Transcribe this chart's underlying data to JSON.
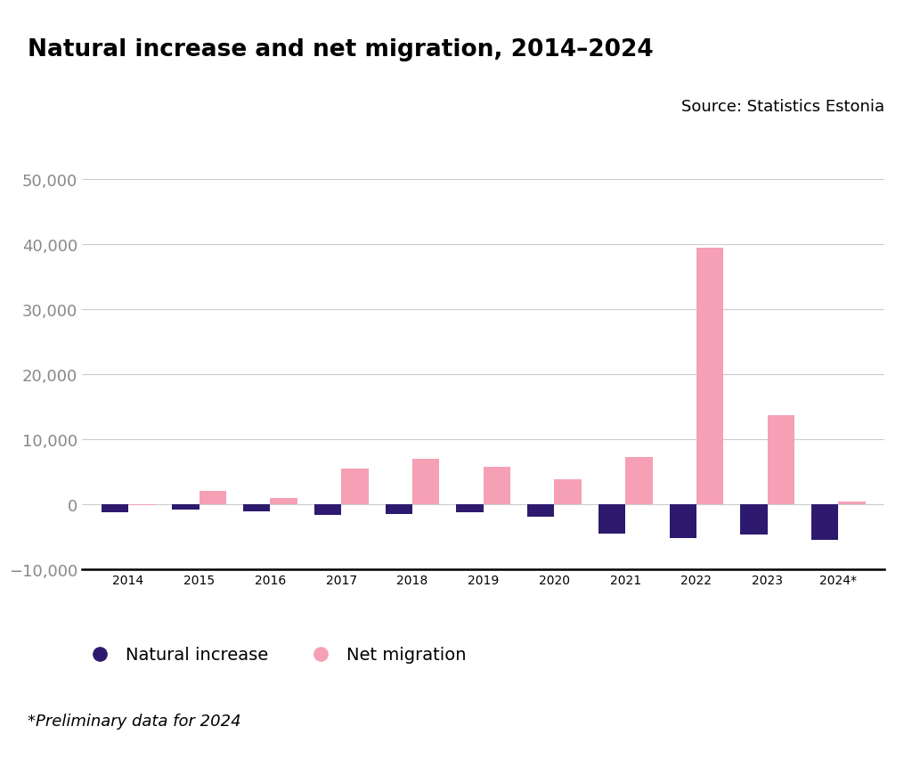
{
  "title": "Natural increase and net migration, 2014–2024",
  "source": "Source: Statistics Estonia",
  "footnote": "*Preliminary data for 2024",
  "years": [
    "2014",
    "2015",
    "2016",
    "2017",
    "2018",
    "2019",
    "2020",
    "2021",
    "2022",
    "2023",
    "2024*"
  ],
  "natural_increase": [
    -1200,
    -900,
    -1100,
    -1700,
    -1500,
    -1300,
    -2000,
    -4500,
    -5200,
    -4700,
    -5500
  ],
  "net_migration": [
    -200,
    2000,
    900,
    5500,
    7000,
    5700,
    3800,
    7200,
    39500,
    13700,
    400
  ],
  "color_natural": "#2d1a6e",
  "color_migration": "#f5a0b5",
  "background_color": "#ffffff",
  "ylim": [
    -10000,
    52000
  ],
  "yticks": [
    -10000,
    0,
    10000,
    20000,
    30000,
    40000,
    50000
  ],
  "bar_width": 0.38,
  "legend_natural": "Natural increase",
  "legend_migration": "Net migration",
  "title_fontsize": 19,
  "tick_fontsize": 13,
  "source_fontsize": 13,
  "legend_fontsize": 14,
  "footnote_fontsize": 13
}
